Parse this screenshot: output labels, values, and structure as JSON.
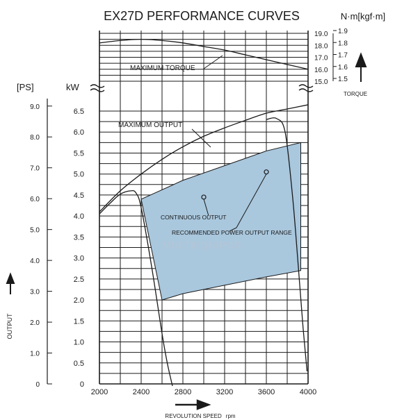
{
  "title": "EX27D PERFORMANCE CURVES",
  "torque_unit": "N·m[kgf·m]",
  "torque_label": "TORQUE",
  "output_ps_unit": "[PS]",
  "output_kw_unit": "kW",
  "output_label": "OUTPUT",
  "xlabel": "REVOLUTION SPEED",
  "xunit": "rpm",
  "annotations": {
    "max_torque": "MAXIMUM TORQUE",
    "max_output": "MAXIMUM OUTPUT",
    "continuous": "CONTINUOUS OUTPUT",
    "recommended": "RECOMMENDED POWER OUTPUT RANGE"
  },
  "watermark": "MULTIEQUIPOS",
  "colors": {
    "region_fill": "#a9c7dd",
    "line": "#1a1a1a"
  },
  "chart_data": {
    "type": "line",
    "title": "EX27D PERFORMANCE CURVES",
    "xlabel": "REVOLUTION SPEED rpm",
    "xlim": [
      2000,
      4000
    ],
    "xticks": [
      "2000",
      "2400",
      "2800",
      "3200",
      "3600",
      "4000"
    ],
    "grid": true,
    "output_axis": {
      "ylabel": "OUTPUT",
      "unit_kw": "kW",
      "unit_ps": "[PS]",
      "kw_ylim": [
        0,
        6.5
      ],
      "kw_ticks": [
        "0",
        "0.5",
        "1.0",
        "1.5",
        "2.0",
        "2.5",
        "3.0",
        "3.5",
        "4.0",
        "4.5",
        "5.0",
        "5.5",
        "6.0",
        "6.5"
      ],
      "ps_ticks": [
        "0",
        "1.0",
        "2.0",
        "3.0",
        "4.0",
        "5.0",
        "6.0",
        "7.0",
        "8.0",
        "9.0"
      ]
    },
    "torque_axis": {
      "ylabel": "TORQUE",
      "unit": "N·m[kgf·m]",
      "nm_ylim": [
        15.0,
        19.0
      ],
      "nm_ticks": [
        "15.0",
        "16.0",
        "17.0",
        "18.0",
        "19.0"
      ],
      "kgfm_ticks": [
        "1.5",
        "1.6",
        "1.7",
        "1.8",
        "1.9"
      ]
    },
    "series": [
      {
        "name": "MAXIMUM TORQUE",
        "axis": "torque_nm",
        "x": [
          2000,
          2200,
          2400,
          2600,
          2800,
          3000,
          3200,
          3400,
          3600,
          3800,
          4000
        ],
        "y": [
          18.2,
          18.4,
          18.5,
          18.4,
          18.2,
          17.9,
          17.6,
          17.2,
          16.8,
          16.4,
          16.0
        ]
      },
      {
        "name": "MAXIMUM OUTPUT",
        "axis": "output_kw",
        "x": [
          2000,
          2200,
          2400,
          2600,
          2800,
          3000,
          3200,
          3400,
          3600,
          3800,
          4000
        ],
        "y": [
          4.1,
          4.6,
          5.0,
          5.35,
          5.65,
          5.9,
          6.1,
          6.28,
          6.45,
          6.55,
          6.65
        ]
      },
      {
        "name": "Maximum output (cut-off, left)",
        "axis": "output_kw",
        "x": [
          2000,
          2100,
          2200,
          2300,
          2350,
          2400,
          2500,
          2600,
          2650,
          2700
        ],
        "y": [
          4.05,
          4.3,
          4.52,
          4.6,
          4.55,
          4.2,
          2.8,
          1.2,
          0.5,
          -0.05
        ]
      },
      {
        "name": "Maximum output (cut-off, right)",
        "axis": "output_kw",
        "x": [
          3600,
          3700,
          3780,
          3850,
          3900,
          3950,
          3990
        ],
        "y": [
          6.3,
          6.32,
          6.0,
          4.5,
          3.0,
          1.4,
          0.3
        ]
      },
      {
        "name": "CONTINUOUS OUTPUT",
        "axis": "output_kw",
        "x": [
          3000
        ],
        "y": [
          4.45
        ]
      },
      {
        "name": "RECOMMENDED POWER OUTPUT RANGE",
        "axis": "output_kw",
        "type": "area",
        "polygon_x": [
          2400,
          2800,
          3200,
          3600,
          3930,
          3930,
          3600,
          3200,
          2800,
          2600,
          2400
        ],
        "polygon_y": [
          4.4,
          4.85,
          5.2,
          5.55,
          5.75,
          2.7,
          2.55,
          2.35,
          2.15,
          2.0,
          4.4
        ]
      }
    ]
  }
}
